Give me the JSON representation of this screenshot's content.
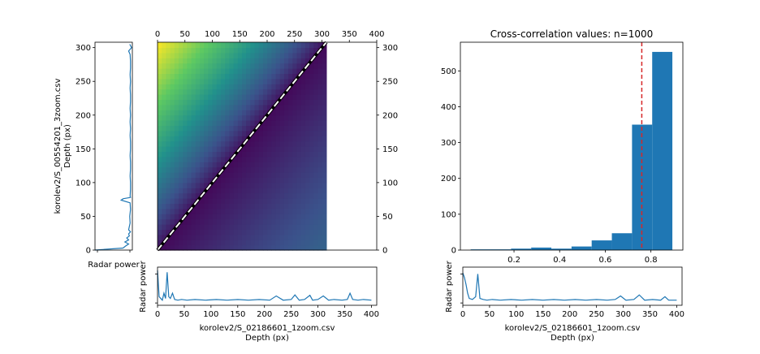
{
  "chart_data": [
    {
      "type": "line",
      "panel": "left-profile",
      "xlabel": "Radar power",
      "ylabel": "korolev2/S_00554201_3zoom.csv\nDepth (px)",
      "ylim": [
        0,
        308
      ],
      "yticks": [
        0,
        50,
        100,
        150,
        200,
        250,
        300
      ],
      "profile_y": [
        0,
        3,
        6,
        9,
        12,
        15,
        18,
        21,
        24,
        27,
        30,
        40,
        50,
        60,
        70,
        74,
        76,
        78,
        80,
        90,
        100,
        110,
        120,
        130,
        140,
        150,
        160,
        170,
        180,
        190,
        200,
        210,
        220,
        230,
        240,
        250,
        260,
        270,
        280,
        290,
        295,
        300,
        305
      ],
      "profile_x": [
        0.0,
        0.75,
        0.82,
        0.9,
        0.8,
        0.9,
        0.85,
        0.92,
        0.9,
        0.95,
        0.9,
        0.94,
        0.93,
        0.95,
        0.94,
        0.7,
        0.75,
        0.95,
        0.94,
        0.95,
        0.95,
        0.94,
        0.95,
        0.95,
        0.94,
        0.95,
        0.95,
        0.94,
        0.95,
        0.94,
        0.95,
        0.94,
        0.95,
        0.95,
        0.94,
        0.95,
        0.94,
        0.95,
        0.95,
        0.94,
        0.9,
        0.98,
        0.93
      ]
    },
    {
      "type": "heatmap",
      "panel": "center-correlation-matrix",
      "xlim": [
        0,
        400
      ],
      "ylim": [
        0,
        308
      ],
      "xticks": [
        0,
        50,
        100,
        150,
        200,
        250,
        300,
        350,
        400
      ],
      "yticks": [
        0,
        50,
        100,
        150,
        200,
        250,
        300
      ],
      "matrix_extent": {
        "x": [
          0,
          308
        ],
        "y": [
          0,
          308
        ]
      },
      "colormap": [
        "#440154",
        "#3b528b",
        "#21918c",
        "#5ec962",
        "#fde725"
      ],
      "diagonal_line": {
        "x": [
          0,
          308
        ],
        "y": [
          0,
          308
        ],
        "style": "dashed",
        "color": "#ffffff"
      }
    },
    {
      "type": "line",
      "panel": "bottom-left-profile",
      "xlabel": "korolev2/S_02186601_1zoom.csv\nDepth (px)",
      "ylabel": "Radar power",
      "xlim": [
        0,
        410
      ],
      "xticks": [
        0,
        50,
        100,
        150,
        200,
        250,
        300,
        350,
        400
      ],
      "x": [
        0,
        3,
        6,
        9,
        12,
        15,
        18,
        21,
        24,
        28,
        32,
        38,
        45,
        55,
        70,
        90,
        110,
        130,
        150,
        170,
        190,
        210,
        222,
        235,
        250,
        257,
        265,
        275,
        285,
        290,
        300,
        310,
        320,
        330,
        345,
        355,
        360,
        365,
        375,
        385,
        400
      ],
      "y": [
        0.95,
        0.2,
        0.15,
        0.1,
        0.3,
        0.15,
        0.9,
        0.2,
        0.15,
        0.3,
        0.12,
        0.1,
        0.12,
        0.1,
        0.12,
        0.1,
        0.12,
        0.1,
        0.12,
        0.1,
        0.12,
        0.1,
        0.22,
        0.1,
        0.12,
        0.25,
        0.1,
        0.12,
        0.24,
        0.1,
        0.12,
        0.22,
        0.1,
        0.12,
        0.1,
        0.12,
        0.3,
        0.12,
        0.1,
        0.12,
        0.1
      ]
    },
    {
      "type": "bar",
      "panel": "right-histogram",
      "title": "Cross-correlation values: n=1000",
      "bin_edges": [
        0.01,
        0.0984,
        0.1868,
        0.2752,
        0.3636,
        0.452,
        0.5404,
        0.6288,
        0.7172,
        0.8056,
        0.894
      ],
      "values": [
        2,
        2,
        4,
        7,
        4,
        10,
        27,
        47,
        350,
        553
      ],
      "xlim": [
        -0.035,
        0.94
      ],
      "ylim": [
        0,
        580
      ],
      "xticks": [
        0.2,
        0.4,
        0.6,
        0.8
      ],
      "yticks": [
        0,
        100,
        200,
        300,
        400,
        500
      ],
      "bar_color": "#1f77b4",
      "threshold": 0.76,
      "threshold_color": "#d62728"
    },
    {
      "type": "line",
      "panel": "bottom-right-profile",
      "xlabel": "korolev2/S_02186601_1zoom.csv\nDepth (px)",
      "ylabel": "Radar power",
      "xlim": [
        0,
        410
      ],
      "xticks": [
        0,
        50,
        100,
        150,
        200,
        250,
        300,
        350,
        400
      ],
      "x": [
        0,
        3,
        6,
        9,
        12,
        18,
        24,
        28,
        32,
        38,
        45,
        55,
        70,
        90,
        110,
        130,
        150,
        170,
        190,
        210,
        230,
        250,
        270,
        285,
        295,
        305,
        320,
        330,
        340,
        355,
        370,
        378,
        385,
        400
      ],
      "y": [
        0.88,
        0.75,
        0.55,
        0.3,
        0.15,
        0.12,
        0.2,
        0.85,
        0.15,
        0.12,
        0.1,
        0.12,
        0.1,
        0.12,
        0.1,
        0.12,
        0.1,
        0.12,
        0.1,
        0.12,
        0.1,
        0.12,
        0.1,
        0.12,
        0.22,
        0.1,
        0.12,
        0.25,
        0.1,
        0.12,
        0.1,
        0.2,
        0.1,
        0.1
      ]
    }
  ]
}
